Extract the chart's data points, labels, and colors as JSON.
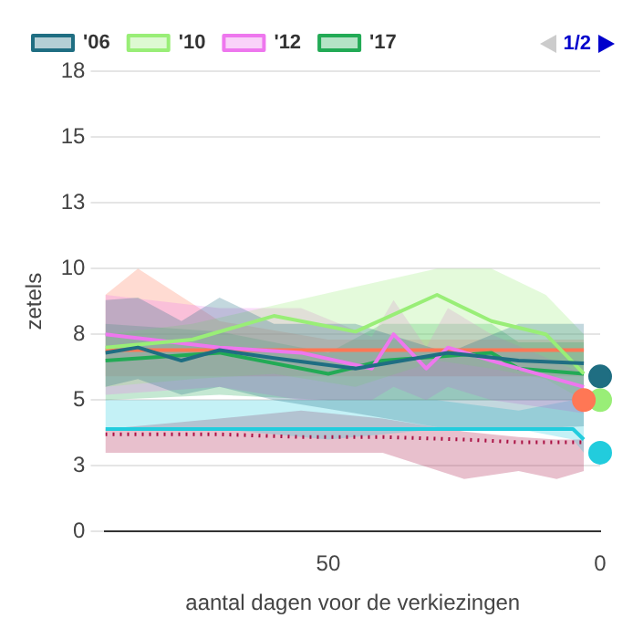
{
  "chart_data": {
    "type": "line",
    "xlabel": "aantal dagen voor de verkiezingen",
    "ylabel": "zetels",
    "xlim": [
      91,
      0
    ],
    "xticks": [
      50,
      0
    ],
    "ylim": [
      0,
      17.5
    ],
    "yticks": [
      0,
      {
        "value": 2.5,
        "label": "3"
      },
      5,
      {
        "value": 7.5,
        "label": "8"
      },
      10,
      {
        "value": 12.5,
        "label": "13"
      },
      15,
      {
        "value": 17.5,
        "label": "18"
      }
    ],
    "grid": "y",
    "legend": "top",
    "marker": "none",
    "line_style": "solid",
    "annotations": [
      "1/2"
    ],
    "series": [
      {
        "name": "'06",
        "color": "#1f6e82",
        "x": [
          91,
          85,
          77,
          70,
          60,
          45,
          28,
          15,
          3
        ],
        "values": [
          6.8,
          7.0,
          6.5,
          6.9,
          6.6,
          6.2,
          6.8,
          6.5,
          6.4
        ],
        "lower": [
          5.5,
          5.8,
          5.2,
          5.5,
          5.0,
          4.5,
          3.9,
          3.9,
          4.0
        ],
        "upper": [
          8.8,
          8.9,
          8.0,
          8.9,
          7.9,
          7.9,
          6.8,
          7.9,
          7.9
        ]
      },
      {
        "name": "'10",
        "color": "#99ee77",
        "x": [
          91,
          75,
          60,
          45,
          30,
          20,
          10,
          3
        ],
        "values": [
          7.0,
          7.3,
          8.2,
          7.6,
          9.0,
          8.0,
          7.5,
          6.0
        ],
        "lower": [
          5.5,
          5.8,
          6.0,
          5.5,
          6.5,
          6.2,
          5.8,
          5.0
        ],
        "upper": [
          7.5,
          7.9,
          8.6,
          9.3,
          10.0,
          10.0,
          9.0,
          7.5
        ]
      },
      {
        "name": "'12",
        "color": "#ee77ee",
        "x": [
          91,
          70,
          55,
          42,
          38,
          32,
          28,
          20,
          3
        ],
        "values": [
          7.5,
          7.0,
          6.8,
          6.2,
          7.5,
          6.2,
          7.0,
          6.5,
          5.5
        ],
        "lower": [
          5.2,
          5.5,
          5.0,
          5.0,
          5.5,
          5.0,
          5.5,
          5.0,
          4.5
        ],
        "upper": [
          9.0,
          8.5,
          8.5,
          7.4,
          8.8,
          7.0,
          8.5,
          7.5,
          6.0
        ]
      },
      {
        "name": "'17",
        "color": "#22aa55",
        "x": [
          91,
          70,
          50,
          40,
          20,
          15,
          3
        ],
        "values": [
          6.5,
          6.8,
          6.0,
          6.5,
          6.8,
          6.2,
          6.0
        ],
        "lower": [
          5.0,
          5.2,
          5.0,
          5.0,
          5.0,
          5.0,
          5.0
        ],
        "upper": [
          7.9,
          7.6,
          6.8,
          7.9,
          7.9,
          7.2,
          7.2
        ]
      },
      {
        "color": "#ff7755",
        "x": [
          91,
          85,
          70,
          50,
          30,
          10,
          3
        ],
        "values": [
          6.9,
          6.9,
          6.9,
          6.9,
          6.9,
          6.9,
          6.9
        ],
        "lower": [
          5.9,
          5.9,
          5.9,
          5.9,
          5.9,
          5.9,
          5.9
        ],
        "upper": [
          9.0,
          10.0,
          8.0,
          7.3,
          7.3,
          7.3,
          7.3
        ]
      },
      {
        "color": "#22ccdd",
        "x": [
          91,
          70,
          50,
          30,
          15,
          5,
          3
        ],
        "values": [
          3.9,
          3.9,
          3.9,
          3.9,
          3.9,
          3.9,
          3.5
        ],
        "lower": [
          3.9,
          3.9,
          3.5,
          3.9,
          3.9,
          3.5,
          3.0
        ],
        "upper": [
          5.0,
          5.0,
          5.0,
          5.0,
          4.6,
          5.0,
          4.5
        ]
      },
      {
        "color": "#aa1144",
        "line_style": "dotted",
        "x": [
          91,
          70,
          55,
          40,
          25,
          15,
          8,
          3
        ],
        "values": [
          3.7,
          3.7,
          3.6,
          3.6,
          3.5,
          3.4,
          3.4,
          3.4
        ],
        "lower": [
          3.0,
          3.0,
          3.0,
          3.0,
          2.0,
          2.3,
          2.0,
          2.3
        ],
        "upper": [
          3.9,
          4.3,
          4.6,
          4.3,
          3.8,
          3.6,
          3.5,
          3.5
        ]
      },
      {
        "type": "scatter",
        "color": "#1f6e82",
        "marker": "circle",
        "x": [
          0
        ],
        "values": [
          5.9
        ]
      },
      {
        "type": "scatter",
        "color": "#ff7755",
        "marker": "circle",
        "x": [
          3
        ],
        "values": [
          5.0
        ]
      },
      {
        "type": "scatter",
        "color": "#99ee77",
        "marker": "circle",
        "x": [
          0
        ],
        "values": [
          5.0
        ]
      },
      {
        "type": "scatter",
        "color": "#22ccdd",
        "marker": "circle",
        "x": [
          0
        ],
        "values": [
          3.0
        ]
      }
    ]
  }
}
